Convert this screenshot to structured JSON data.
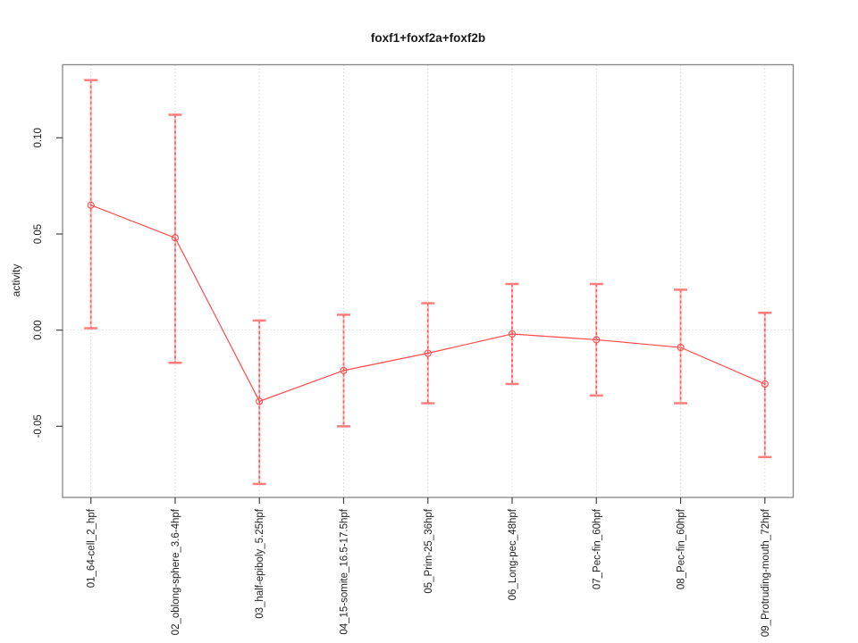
{
  "title": "foxf1+foxf2a+foxf2b",
  "chart_data": {
    "type": "line",
    "title": "foxf1+foxf2a+foxf2b",
    "xlabel": "",
    "ylabel": "activity",
    "categories": [
      "01_64-cell_2_hpf",
      "02_oblong-sphere_3.6-4hpf",
      "03_half-epiboly_5.25hpf",
      "04_15-somite_16.5-17.5hpf",
      "05_Prim-25_36hpf",
      "06_Long-pec_48hpf",
      "07_Pec-fin_60hpf",
      "08_Pec-fin_60hpf",
      "09_Protruding-mouth_72hpf"
    ],
    "series": [
      {
        "name": "activity",
        "values": [
          0.065,
          0.048,
          -0.037,
          -0.021,
          -0.012,
          -0.002,
          -0.005,
          -0.009,
          -0.028
        ],
        "error_low": [
          0.001,
          -0.017,
          -0.08,
          -0.05,
          -0.038,
          -0.028,
          -0.034,
          -0.038,
          -0.066
        ],
        "error_high": [
          0.13,
          0.112,
          0.005,
          0.008,
          0.014,
          0.024,
          0.024,
          0.021,
          0.009
        ]
      }
    ],
    "ylim": [
      -0.087,
      0.138
    ],
    "yticks": [
      -0.05,
      0.0,
      0.05,
      0.1
    ],
    "ytick_labels": [
      "-0.05",
      "0.00",
      "0.05",
      "0.10"
    ],
    "grid": "vertical dotted line at each category; horizontal dotted line at y=0",
    "legend": "none",
    "marker": "open-circle",
    "colors": {
      "line": "#ff4a4a",
      "marker": "#ff4a4a",
      "errorbar_stem_light": "#ffb4b4",
      "errorbar_stem_dash": "#ff5a5a",
      "errorbar_cap": "#ff7d7d",
      "gridline": "#d8d8d8",
      "plot_border": "#878787",
      "tick": "#454545",
      "text": "#1a1a1a",
      "background": "#ffffff"
    }
  }
}
